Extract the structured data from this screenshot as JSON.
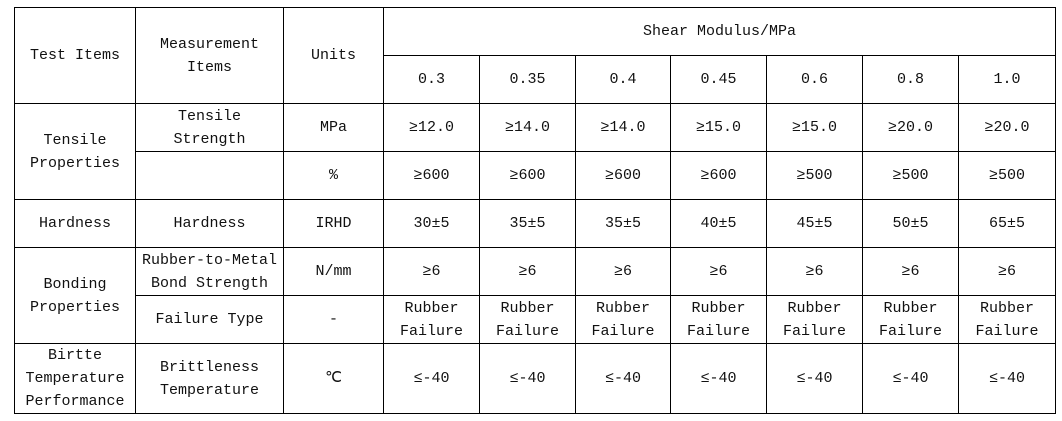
{
  "table": {
    "header": {
      "test_items": "Test Items",
      "measurement_items": "Measurement Items",
      "units": "Units",
      "group": "Shear Modulus/MPa",
      "columns": [
        "0.3",
        "0.35",
        "0.4",
        "0.45",
        "0.6",
        "0.8",
        "1.0"
      ]
    },
    "rows": [
      {
        "test_item": "Tensile Properties",
        "measurement_item": "Tensile Strength",
        "unit": "MPa",
        "values": [
          "≥12.0",
          "≥14.0",
          "≥14.0",
          "≥15.0",
          "≥15.0",
          "≥20.0",
          "≥20.0"
        ]
      },
      {
        "unit": "%",
        "values": [
          "≥600",
          "≥600",
          "≥600",
          "≥600",
          "≥500",
          "≥500",
          "≥500"
        ]
      },
      {
        "test_item": "Hardness",
        "measurement_item": "Hardness",
        "unit": "IRHD",
        "values": [
          "30±5",
          "35±5",
          "35±5",
          "40±5",
          "45±5",
          "50±5",
          "65±5"
        ]
      },
      {
        "test_item": "Bonding Properties",
        "measurement_item": "Rubber-to-Metal Bond Strength",
        "unit": "N/mm",
        "values": [
          "≥6",
          "≥6",
          "≥6",
          "≥6",
          "≥6",
          "≥6",
          "≥6"
        ]
      },
      {
        "measurement_item": "Failure Type",
        "unit": "-",
        "values": [
          "Rubber Failure",
          "Rubber Failure",
          "Rubber Failure",
          "Rubber Failure",
          "Rubber Failure",
          "Rubber Failure",
          "Rubber Failure"
        ]
      },
      {
        "test_item": "Birtte Temperature Performance",
        "measurement_item": "Brittleness Temperature",
        "unit": "℃",
        "values": [
          "≤-40",
          "≤-40",
          "≤-40",
          "≤-40",
          "≤-40",
          "≤-40",
          "≤-40"
        ]
      }
    ]
  }
}
